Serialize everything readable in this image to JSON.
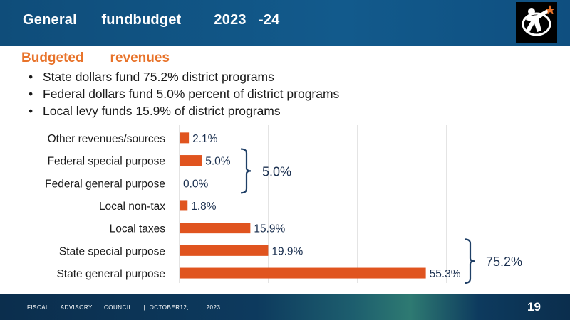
{
  "header": {
    "title": "General      fundbudget        2023   -24"
  },
  "section": {
    "title": "Budgeted       revenues"
  },
  "bullets": [
    "State dollars fund 75.2% district programs",
    "Federal dollars fund 5.0% percent of district programs",
    "Local levy funds 15.9% of district programs"
  ],
  "chart_data": {
    "type": "bar",
    "orientation": "horizontal",
    "categories": [
      "Other revenues/sources",
      "Federal special purpose",
      "Federal general purpose",
      "Local non-tax",
      "Local taxes",
      "State special purpose",
      "State general purpose"
    ],
    "values": [
      2.1,
      5.0,
      0.0,
      1.8,
      15.9,
      19.9,
      55.3
    ],
    "data_labels": [
      "2.1%",
      "5.0%",
      "0.0%",
      "1.8%",
      "15.9%",
      "19.9%",
      "55.3%"
    ],
    "xlim": [
      0,
      60
    ],
    "grid": "vertical",
    "bar_color": "#e0541f",
    "brackets": [
      {
        "from": "Federal special purpose",
        "to": "Federal general purpose",
        "label": "5.0%"
      },
      {
        "from": "State special purpose",
        "to": "State general purpose",
        "label": "75.2%"
      }
    ]
  },
  "footer": {
    "text": "FISCAL      ADVISORY      COUNCIL      |  OCTOBER12,         2023",
    "page": "19"
  },
  "colors": {
    "header_bg": "#125a8c",
    "accent": "#e8732a",
    "bar": "#e0541f",
    "bracket": "#1f3f66"
  }
}
